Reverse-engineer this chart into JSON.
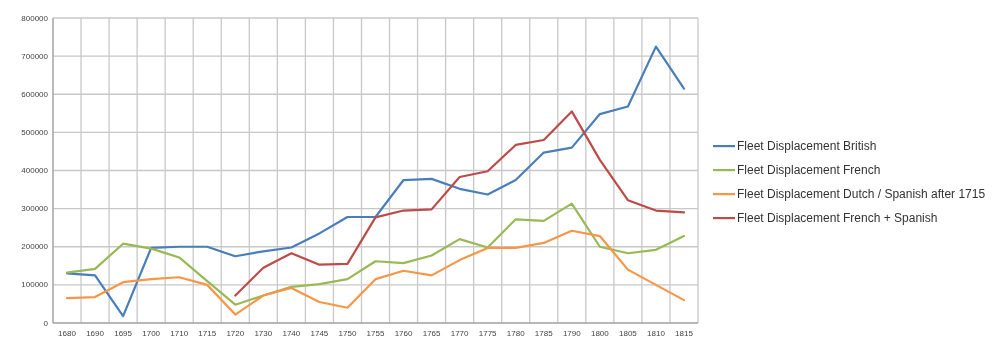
{
  "chart_data": {
    "type": "line",
    "categories": [
      "1680",
      "1690",
      "1695",
      "1700",
      "1710",
      "1715",
      "1720",
      "1730",
      "1740",
      "1745",
      "1750",
      "1755",
      "1760",
      "1765",
      "1770",
      "1775",
      "1780",
      "1785",
      "1790",
      "1800",
      "1805",
      "1810",
      "1815"
    ],
    "series": [
      {
        "name": "Fleet Displacement British",
        "color": "#4a7ebb",
        "values": [
          130000,
          125000,
          18000,
          197000,
          200000,
          200000,
          175000,
          188000,
          198000,
          235000,
          278000,
          278000,
          375000,
          378000,
          352000,
          337000,
          375000,
          447000,
          460000,
          548000,
          568000,
          725000,
          615000
        ]
      },
      {
        "name": "Fleet Displacement French",
        "color": "#98b954",
        "values": [
          132000,
          142000,
          208000,
          195000,
          172000,
          110000,
          48000,
          72000,
          95000,
          102000,
          115000,
          162000,
          157000,
          177000,
          220000,
          198000,
          272000,
          268000,
          313000,
          200000,
          183000,
          192000,
          228000
        ]
      },
      {
        "name": "Fleet Displacement Dutch / Spanish after 1715",
        "color": "#f79646",
        "values": [
          65000,
          68000,
          107000,
          115000,
          120000,
          100000,
          22000,
          72000,
          92000,
          55000,
          40000,
          115000,
          137000,
          125000,
          165000,
          197000,
          197000,
          210000,
          242000,
          228000,
          140000,
          100000,
          60000
        ]
      },
      {
        "name": "Fleet Displacement French + Spanish",
        "color": "#be4b48",
        "values": [
          null,
          null,
          null,
          null,
          null,
          null,
          72000,
          145000,
          183000,
          153000,
          155000,
          277000,
          295000,
          298000,
          383000,
          398000,
          467000,
          480000,
          555000,
          428000,
          322000,
          295000,
          290000
        ]
      }
    ],
    "ylim": [
      0,
      800000
    ],
    "yticks": [
      0,
      100000,
      200000,
      300000,
      400000,
      500000,
      600000,
      700000,
      800000
    ],
    "grid": true,
    "legend": "right",
    "marker": "none",
    "line_style": "solid"
  }
}
